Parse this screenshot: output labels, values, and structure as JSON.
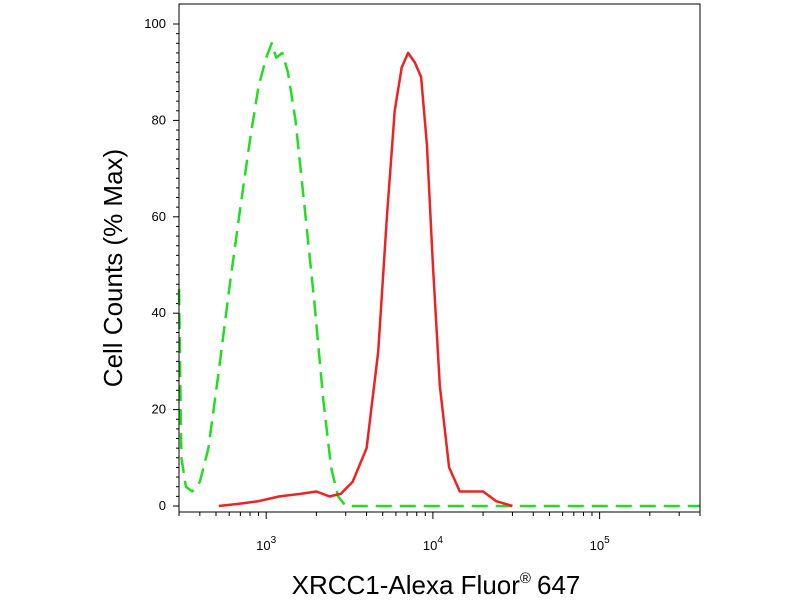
{
  "chart_data": {
    "type": "line",
    "title": "",
    "xlabel": "XRCC1-Alexa Fluor",
    "xlabel_superscript": "®",
    "xlabel_suffix": "647",
    "ylabel": "Cell Counts (% Max)",
    "xscale": "log",
    "xlim": [
      300,
      400000
    ],
    "ylim": [
      0,
      100
    ],
    "grid": false,
    "legend": "none",
    "y_ticks": [
      0,
      20,
      40,
      60,
      80,
      100
    ],
    "x_ticks": [
      {
        "value": 1000,
        "base": "10",
        "exp": "3"
      },
      {
        "value": 10000,
        "base": "10",
        "exp": "4"
      },
      {
        "value": 100000,
        "base": "10",
        "exp": "5"
      }
    ],
    "series": [
      {
        "color": "#22dd22",
        "dash": "dashed",
        "points": [
          [
            300,
            45
          ],
          [
            310,
            10
          ],
          [
            330,
            4
          ],
          [
            360,
            3
          ],
          [
            400,
            5
          ],
          [
            450,
            12
          ],
          [
            520,
            28
          ],
          [
            600,
            45
          ],
          [
            700,
            62
          ],
          [
            800,
            76
          ],
          [
            900,
            87
          ],
          [
            1000,
            93
          ],
          [
            1080,
            96
          ],
          [
            1150,
            93
          ],
          [
            1250,
            94
          ],
          [
            1350,
            90
          ],
          [
            1500,
            80
          ],
          [
            1700,
            62
          ],
          [
            1950,
            42
          ],
          [
            2200,
            22
          ],
          [
            2450,
            8
          ],
          [
            2700,
            2
          ],
          [
            3000,
            0
          ],
          [
            30000,
            0
          ],
          [
            400000,
            0
          ]
        ]
      },
      {
        "color": "#ee2222",
        "dash": "solid",
        "points": [
          [
            520,
            0
          ],
          [
            700,
            0.5
          ],
          [
            900,
            1
          ],
          [
            1200,
            2
          ],
          [
            1600,
            2.5
          ],
          [
            2000,
            3
          ],
          [
            2400,
            2
          ],
          [
            2800,
            2.5
          ],
          [
            3300,
            5
          ],
          [
            4000,
            12
          ],
          [
            4700,
            32
          ],
          [
            5300,
            60
          ],
          [
            5900,
            82
          ],
          [
            6500,
            91
          ],
          [
            7100,
            94
          ],
          [
            7800,
            92
          ],
          [
            8500,
            89
          ],
          [
            9200,
            75
          ],
          [
            10000,
            50
          ],
          [
            11000,
            25
          ],
          [
            12500,
            8
          ],
          [
            14500,
            3
          ],
          [
            17000,
            3
          ],
          [
            20000,
            3
          ],
          [
            24000,
            1
          ],
          [
            30000,
            0
          ]
        ]
      }
    ]
  }
}
